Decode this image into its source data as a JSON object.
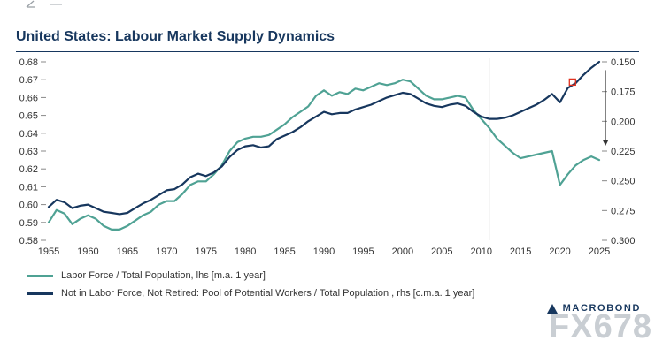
{
  "title": "United States: Labour Market Supply Dynamics",
  "watermark": "FX678",
  "brand": {
    "name": "MACROBOND"
  },
  "legend": {
    "items": [
      {
        "label": "Labor Force / Total Population, lhs [m.a. 1 year]",
        "color": "#4fa294"
      },
      {
        "label": "Not in Labor Force, Not Retired: Pool of Potential Workers / Total Population , rhs [c.m.a. 1 year]",
        "color": "#17375e"
      }
    ]
  },
  "chart_data": {
    "type": "line",
    "title": "United States: Labour Market Supply Dynamics",
    "x_tick_labels": [
      "1955",
      "1960",
      "1965",
      "1970",
      "1975",
      "1980",
      "1985",
      "1990",
      "1995",
      "2000",
      "2005",
      "2010",
      "2015",
      "2020",
      "2025"
    ],
    "left_axis": {
      "min": 0.58,
      "max": 0.68,
      "tick_labels": [
        "0.58",
        "0.59",
        "0.60",
        "0.61",
        "0.62",
        "0.63",
        "0.64",
        "0.65",
        "0.66",
        "0.67",
        "0.68"
      ]
    },
    "right_axis": {
      "min": 0.15,
      "max": 0.3,
      "inverted": true,
      "tick_labels": [
        "0.150",
        "0.175",
        "0.200",
        "0.225",
        "0.250",
        "0.275",
        "0.300"
      ]
    },
    "years": [
      1955,
      1956,
      1957,
      1958,
      1959,
      1960,
      1961,
      1962,
      1963,
      1964,
      1965,
      1966,
      1967,
      1968,
      1969,
      1970,
      1971,
      1972,
      1973,
      1974,
      1975,
      1976,
      1977,
      1978,
      1979,
      1980,
      1981,
      1982,
      1983,
      1984,
      1985,
      1986,
      1987,
      1988,
      1989,
      1990,
      1991,
      1992,
      1993,
      1994,
      1995,
      1996,
      1997,
      1998,
      1999,
      2000,
      2001,
      2002,
      2003,
      2004,
      2005,
      2006,
      2007,
      2008,
      2009,
      2010,
      2011,
      2012,
      2013,
      2014,
      2015,
      2016,
      2017,
      2018,
      2019,
      2020,
      2021,
      2022,
      2023,
      2024,
      2025
    ],
    "series": [
      {
        "name": "Labor Force / Total Population, lhs [m.a. 1 year]",
        "axis": "lhs",
        "color": "#4fa294",
        "values": [
          0.59,
          0.597,
          0.595,
          0.589,
          0.592,
          0.594,
          0.592,
          0.588,
          0.586,
          0.586,
          0.588,
          0.591,
          0.594,
          0.596,
          0.6,
          0.602,
          0.602,
          0.606,
          0.611,
          0.613,
          0.613,
          0.617,
          0.622,
          0.63,
          0.635,
          0.637,
          0.638,
          0.638,
          0.639,
          0.642,
          0.645,
          0.649,
          0.652,
          0.655,
          0.661,
          0.664,
          0.661,
          0.663,
          0.662,
          0.665,
          0.664,
          0.666,
          0.668,
          0.667,
          0.668,
          0.67,
          0.669,
          0.665,
          0.661,
          0.659,
          0.659,
          0.66,
          0.661,
          0.66,
          0.653,
          0.648,
          0.643,
          0.637,
          0.633,
          0.629,
          0.626,
          0.627,
          0.628,
          0.629,
          0.63,
          0.611,
          0.617,
          0.622,
          0.625,
          0.627,
          0.625
        ]
      },
      {
        "name": "Not in Labor Force, Not Retired: Pool of Potential Workers / Total Population , rhs [c.m.a. 1 year]",
        "axis": "rhs",
        "color": "#17375e",
        "values": [
          0.272,
          0.266,
          0.268,
          0.273,
          0.271,
          0.27,
          0.273,
          0.276,
          0.277,
          0.278,
          0.277,
          0.273,
          0.269,
          0.266,
          0.262,
          0.258,
          0.257,
          0.253,
          0.247,
          0.244,
          0.246,
          0.243,
          0.238,
          0.23,
          0.224,
          0.221,
          0.22,
          0.222,
          0.221,
          0.215,
          0.212,
          0.209,
          0.205,
          0.2,
          0.196,
          0.192,
          0.194,
          0.193,
          0.193,
          0.19,
          0.188,
          0.186,
          0.183,
          0.18,
          0.178,
          0.176,
          0.177,
          0.181,
          0.185,
          0.187,
          0.188,
          0.186,
          0.185,
          0.187,
          0.192,
          0.196,
          0.198,
          0.198,
          0.197,
          0.195,
          0.192,
          0.189,
          0.186,
          0.182,
          0.177,
          0.184,
          0.172,
          0.168,
          0.161,
          0.155,
          0.15
        ]
      }
    ],
    "annotations": {
      "vertical_line_year": 2011,
      "red_square_marker": {
        "year": 2021.6,
        "value_rhs": 0.167
      },
      "gap_arrow": {
        "year": 2025.8,
        "from_rhs": 0.157,
        "to_lhs": 0.633
      }
    }
  }
}
